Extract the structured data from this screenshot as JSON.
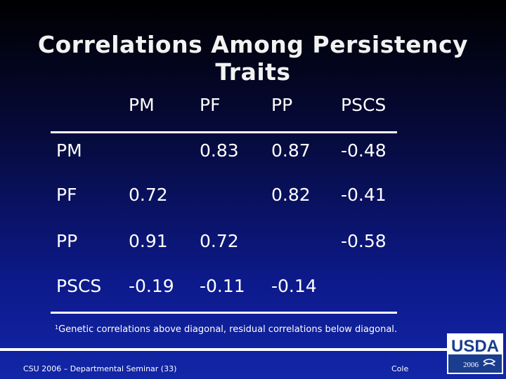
{
  "slide": {
    "title": "Correlations Among Persistency Traits",
    "footnote_marker": "1",
    "footnote": "Genetic correlations above diagonal, residual correlations below diagonal.",
    "footer_left": "CSU 2006 – Departmental Seminar (33)",
    "footer_right": "Cole",
    "logo_text": "USDA",
    "logo_year": "2006"
  },
  "table": {
    "col_headers": [
      "PM",
      "PF",
      "PP",
      "PSCS"
    ],
    "rows": [
      {
        "label": "PM",
        "cells": [
          "",
          "0.83",
          "0.87",
          "-0.48"
        ]
      },
      {
        "label": "PF",
        "cells": [
          "0.72",
          "",
          "0.82",
          "-0.41"
        ]
      },
      {
        "label": "PP",
        "cells": [
          "0.91",
          "0.72",
          "",
          "-0.58"
        ]
      },
      {
        "label": "PSCS",
        "cells": [
          "-0.19",
          "-0.11",
          "-0.14",
          ""
        ]
      }
    ]
  },
  "colors": {
    "text": "#ffffff",
    "logo_blue": "#1a3d8f"
  }
}
